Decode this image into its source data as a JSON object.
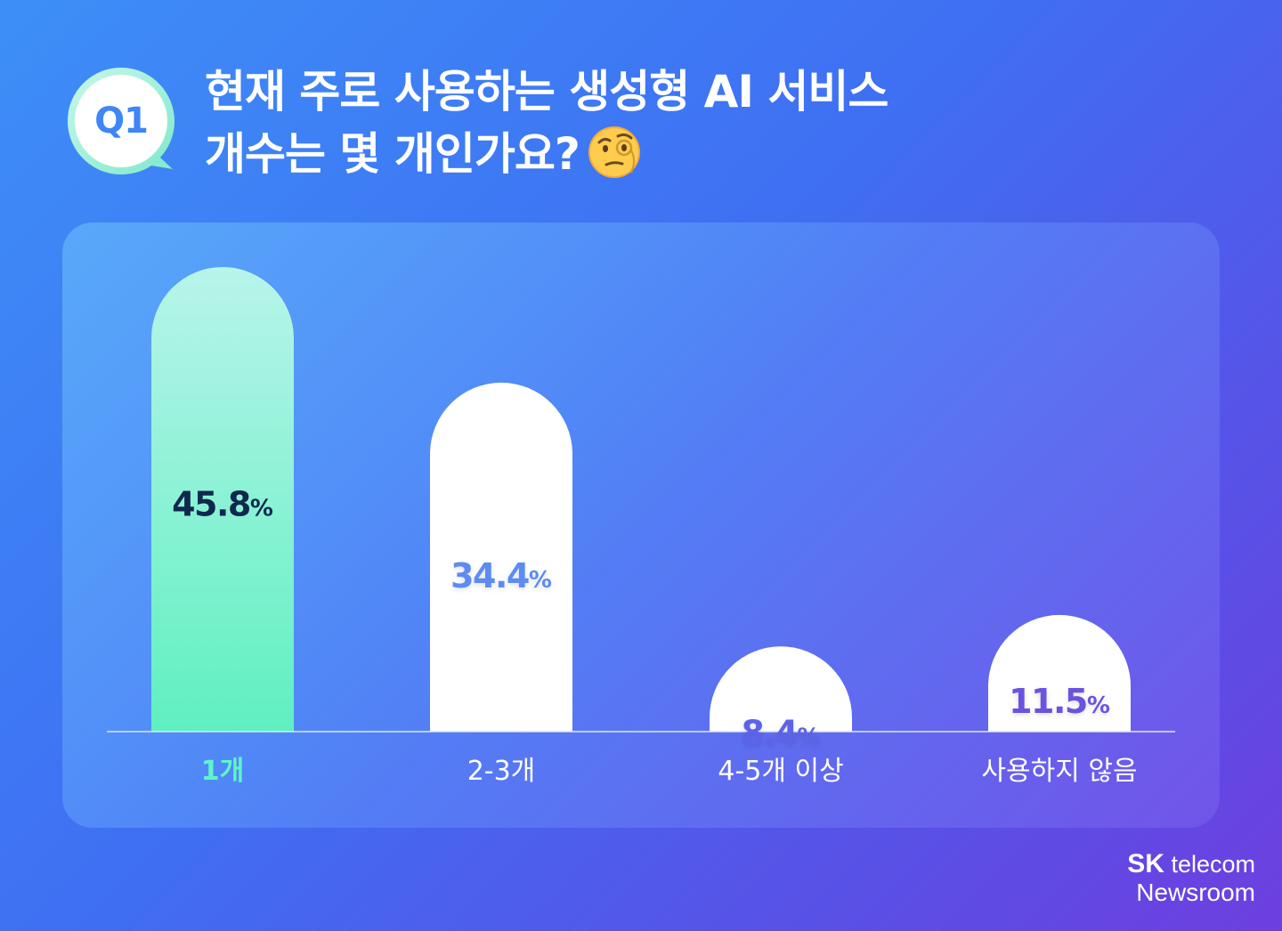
{
  "badge": {
    "label": "Q1"
  },
  "title": {
    "line1": "현재 주로 사용하는 생성형 AI 서비스",
    "line2": "개수는 몇 개인가요?",
    "emoji": "face-with-monocle-icon"
  },
  "colors": {
    "highlight_bar": "#6ef0c0",
    "bar": "#ffffff",
    "highlight_label": "#5ef5c8",
    "value_highlight": "#10284f",
    "value_blue": "#5b8cf2",
    "value_indigo": "#5d63e8",
    "value_purple": "#6b52e0"
  },
  "chart_data": {
    "type": "bar",
    "title": "",
    "xlabel": "",
    "ylabel": "",
    "categories": [
      "1개",
      "2-3개",
      "4-5개 이상",
      "사용하지 않음"
    ],
    "values": [
      45.8,
      34.4,
      8.4,
      11.5
    ],
    "value_labels": [
      "45.8%",
      "34.4%",
      "8.4%",
      "11.5%"
    ],
    "highlighted_index": 0,
    "ylim": [
      0,
      50
    ],
    "grid": false
  },
  "footer": {
    "brand_bold": "SK",
    "brand_rest": "telecom",
    "sub": "Newsroom"
  }
}
